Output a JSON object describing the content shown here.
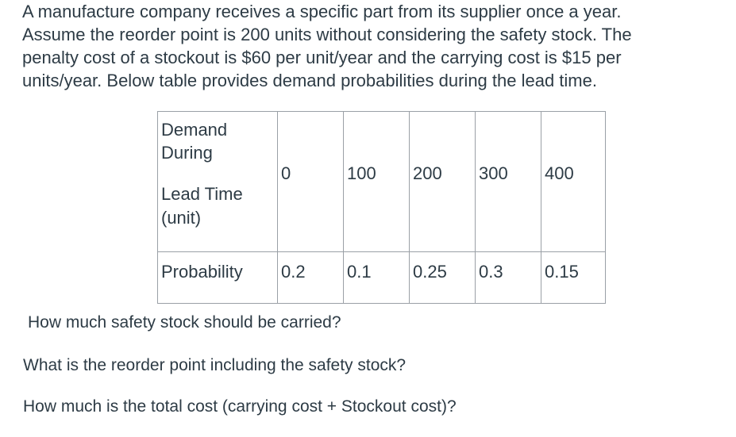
{
  "problem": {
    "lines": [
      "A manufacture company receives a specific part from its supplier once a year.",
      "Assume the reorder point is 200 units without considering the safety stock. The",
      "penalty cost of a stockout is $60 per unit/year and the carrying cost is $15 per",
      "units/year. Below table provides demand probabilities during the lead time."
    ]
  },
  "table": {
    "header_label_lines": [
      "Demand",
      "During",
      "Lead Time",
      "(unit)"
    ],
    "demand_values": [
      "0",
      "100",
      "200",
      "300",
      "400"
    ],
    "probability_label": "Probability",
    "probability_values": [
      "0.2",
      "0.1",
      "0.25",
      "0.3",
      "0.15"
    ]
  },
  "questions": [
    "How much safety stock should be carried?",
    "What is the reorder point including the safety stock?",
    "How much is the total cost (carrying cost + Stockout cost)?"
  ]
}
